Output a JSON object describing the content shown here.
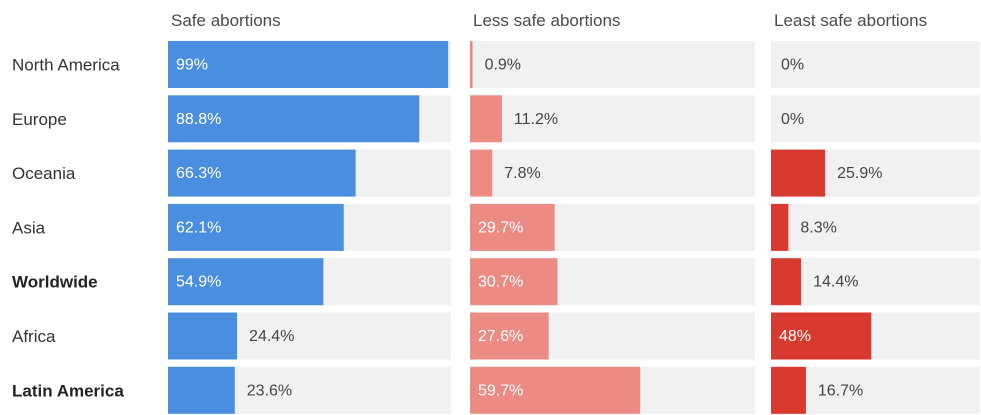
{
  "chart_data": {
    "type": "bar",
    "categories": [
      "North America",
      "Europe",
      "Oceania",
      "Asia",
      "Worldwide",
      "Africa",
      "Latin America"
    ],
    "bold_categories": [
      "Worldwide",
      "Latin America"
    ],
    "xlim": [
      0,
      100
    ],
    "series": [
      {
        "name": "Safe abortions",
        "color": "#4a8fdf",
        "values": [
          99,
          88.8,
          66.3,
          62.1,
          54.9,
          24.4,
          23.6
        ],
        "labels": [
          "99%",
          "88.8%",
          "66.3%",
          "62.1%",
          "54.9%",
          "24.4%",
          "23.6%"
        ]
      },
      {
        "name": "Less safe abortions",
        "color": "#ec8a84",
        "values": [
          0.9,
          11.2,
          7.8,
          29.7,
          30.7,
          27.6,
          59.7
        ],
        "labels": [
          "0.9%",
          "11.2%",
          "7.8%",
          "29.7%",
          "30.7%",
          "27.6%",
          "59.7%"
        ]
      },
      {
        "name": "Least safe abortions",
        "color": "#d93a30",
        "values": [
          0,
          0,
          25.9,
          8.3,
          14.4,
          48,
          16.7
        ],
        "labels": [
          "0%",
          "0%",
          "25.9%",
          "8.3%",
          "14.4%",
          "48%",
          "16.7%"
        ]
      }
    ],
    "track_color": "#f1f1f1"
  }
}
